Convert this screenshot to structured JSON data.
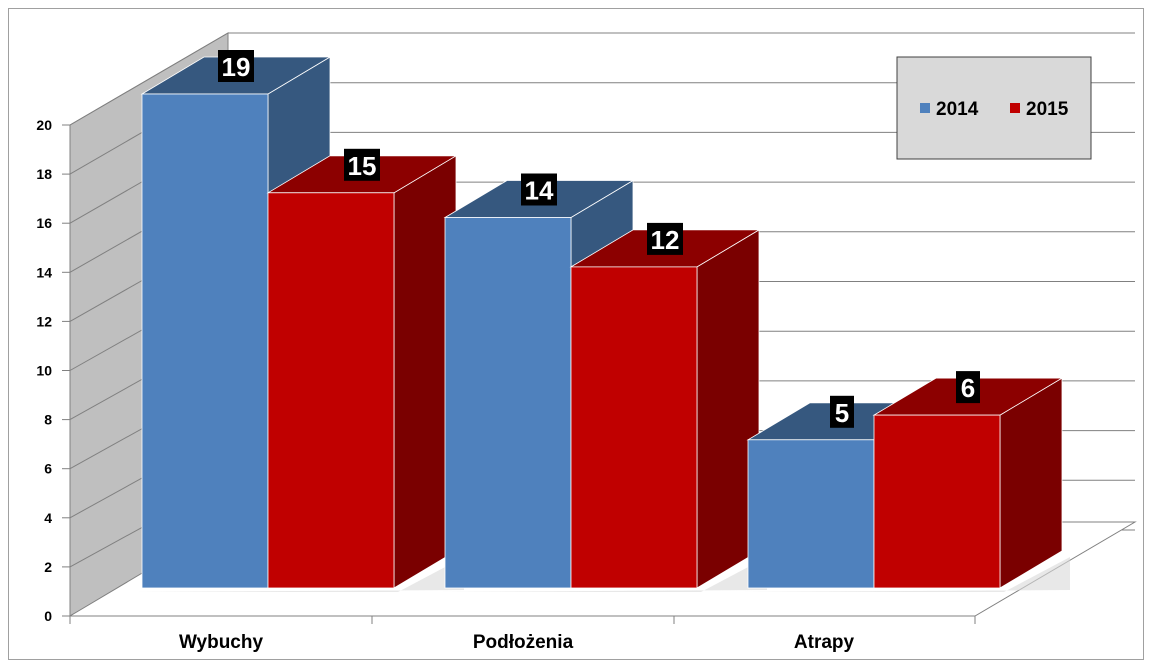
{
  "chart_data": {
    "type": "bar",
    "categories": [
      "Wybuchy",
      "Podłożenia",
      "Atrapy"
    ],
    "series": [
      {
        "name": "2014",
        "values": [
          19,
          14,
          5
        ],
        "color": "#4f81bd",
        "top_color": "#36587f",
        "side_color": "#36587f"
      },
      {
        "name": "2015",
        "values": [
          15,
          12,
          6
        ],
        "color": "#c00000",
        "top_color": "#8c0000",
        "side_color": "#7a0000"
      }
    ],
    "y_ticks": [
      "0",
      "2",
      "4",
      "6",
      "8",
      "10",
      "12",
      "14",
      "16",
      "18",
      "20"
    ],
    "ylim": [
      0,
      20
    ],
    "grid": true,
    "legend_position": "top-right",
    "three_d": true,
    "colors": {
      "wall": "#bfbfbf",
      "grid": "#808080",
      "legend_bg": "#d9d9d9"
    }
  }
}
